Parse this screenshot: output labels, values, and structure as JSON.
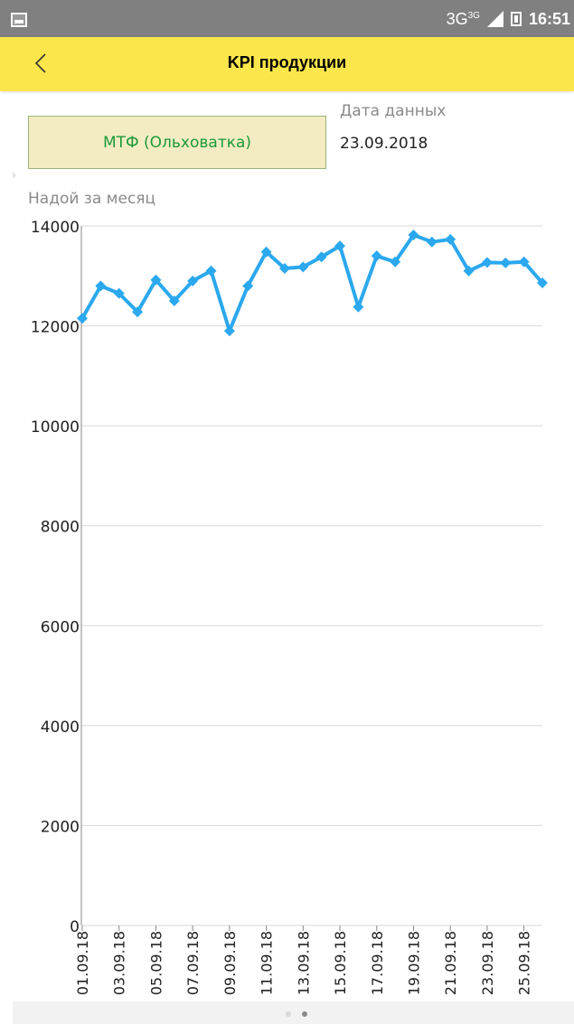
{
  "status_bar": {
    "network": "3G",
    "network_sup": "3G",
    "time": "16:51"
  },
  "header": {
    "title": "KPI продукции",
    "back_icon": "chevron-left-icon"
  },
  "farm_button": {
    "label": "МТФ (Ольховатка)"
  },
  "data_date": {
    "label": "Дата данных",
    "value": "23.09.2018"
  },
  "chart_section": {
    "label": "Надой за месяц"
  },
  "colors": {
    "accent": "#fde64b",
    "series": "#2ba8ee",
    "farm_text": "#1c9a3a"
  },
  "pager": {
    "count": 2,
    "active_index": 1
  },
  "chart_data": {
    "type": "line",
    "title": "",
    "xlabel": "",
    "ylabel": "",
    "ylim": [
      0,
      14000
    ],
    "yticks": [
      "0",
      "2000",
      "4000",
      "6000",
      "8000",
      "10000",
      "12000",
      "14000"
    ],
    "grid": true,
    "categories": [
      "01.09.18",
      "02.09.18",
      "03.09.18",
      "04.09.18",
      "05.09.18",
      "06.09.18",
      "07.09.18",
      "08.09.18",
      "09.09.18",
      "10.09.18",
      "11.09.18",
      "12.09.18",
      "13.09.18",
      "14.09.18",
      "15.09.18",
      "16.09.18",
      "17.09.18",
      "18.09.18",
      "19.09.18",
      "20.09.18",
      "21.09.18",
      "22.09.18",
      "23.09.18",
      "24.09.18",
      "25.09.18",
      "26.09.18"
    ],
    "xtick_labels": [
      "01.09.18",
      "03.09.18",
      "05.09.18",
      "07.09.18",
      "09.09.18",
      "11.09.18",
      "13.09.18",
      "15.09.18",
      "17.09.18",
      "19.09.18",
      "21.09.18",
      "23.09.18",
      "25.09.18"
    ],
    "series": [
      {
        "values": [
          12150,
          12800,
          12650,
          12280,
          12920,
          12500,
          12900,
          13100,
          11900,
          12800,
          13480,
          13150,
          13180,
          13380,
          13600,
          12380,
          13400,
          13280,
          13820,
          13680,
          13730,
          13100,
          13270,
          13260,
          13280,
          12860
        ]
      }
    ]
  }
}
